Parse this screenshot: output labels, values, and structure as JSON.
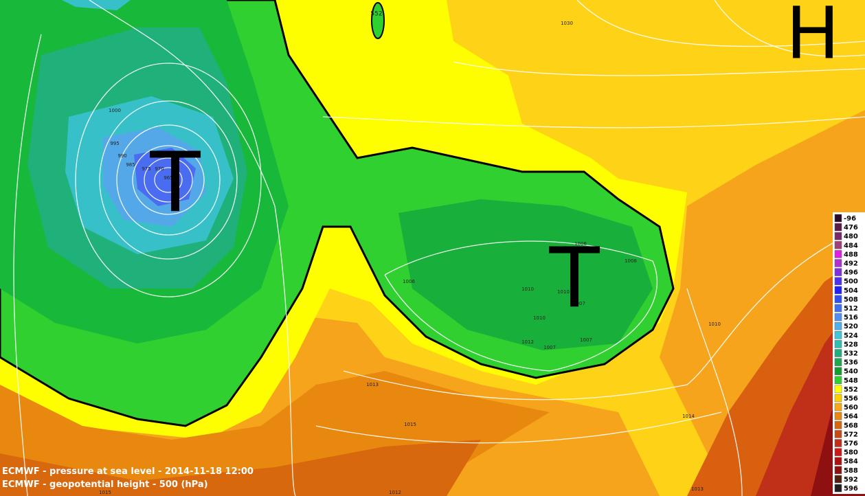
{
  "map": {
    "captions": [
      "ECMWF - pressure at sea level - 2014-11-18 12:00",
      "ECMWF - geopotential height - 500 (hPa)"
    ],
    "markers": {
      "low_west": "T",
      "low_central": "T",
      "high": "H"
    },
    "contour_label": "552",
    "isobar_labels": [
      "1000",
      "995",
      "990",
      "985",
      "975",
      "970",
      "965",
      "1030",
      "1006",
      "1006",
      "1006",
      "1010",
      "1010",
      "1007",
      "1010",
      "1012",
      "1007",
      "1007",
      "1010",
      "1013",
      "1015",
      "1014",
      "1015",
      "1012",
      "1013"
    ],
    "legend": [
      {
        "label": "-96",
        "color": "#2a0a2a"
      },
      {
        "label": "476",
        "color": "#5a1a4a"
      },
      {
        "label": "480",
        "color": "#7a2a6a"
      },
      {
        "label": "484",
        "color": "#a0407a"
      },
      {
        "label": "488",
        "color": "#e020e0"
      },
      {
        "label": "492",
        "color": "#b030d0"
      },
      {
        "label": "496",
        "color": "#8030e0"
      },
      {
        "label": "500",
        "color": "#5030f0"
      },
      {
        "label": "504",
        "color": "#2020ff"
      },
      {
        "label": "508",
        "color": "#3050f0"
      },
      {
        "label": "512",
        "color": "#4070f0"
      },
      {
        "label": "516",
        "color": "#5090f0"
      },
      {
        "label": "520",
        "color": "#50b0e8"
      },
      {
        "label": "524",
        "color": "#40c8d8"
      },
      {
        "label": "528",
        "color": "#30c0b0"
      },
      {
        "label": "532",
        "color": "#20b080"
      },
      {
        "label": "536",
        "color": "#20a850"
      },
      {
        "label": "540",
        "color": "#10a030"
      },
      {
        "label": "548",
        "color": "#30d030"
      },
      {
        "label": "552",
        "color": "#ffff00"
      },
      {
        "label": "556",
        "color": "#ffd000"
      },
      {
        "label": "560",
        "color": "#f8a818"
      },
      {
        "label": "564",
        "color": "#e88810"
      },
      {
        "label": "568",
        "color": "#d86810"
      },
      {
        "label": "572",
        "color": "#c84a14"
      },
      {
        "label": "576",
        "color": "#c03018"
      },
      {
        "label": "580",
        "color": "#d01818"
      },
      {
        "label": "584",
        "color": "#b01010"
      },
      {
        "label": "588",
        "color": "#901010"
      },
      {
        "label": "592",
        "color": "#502010"
      },
      {
        "label": "596",
        "color": "#202020"
      }
    ]
  }
}
